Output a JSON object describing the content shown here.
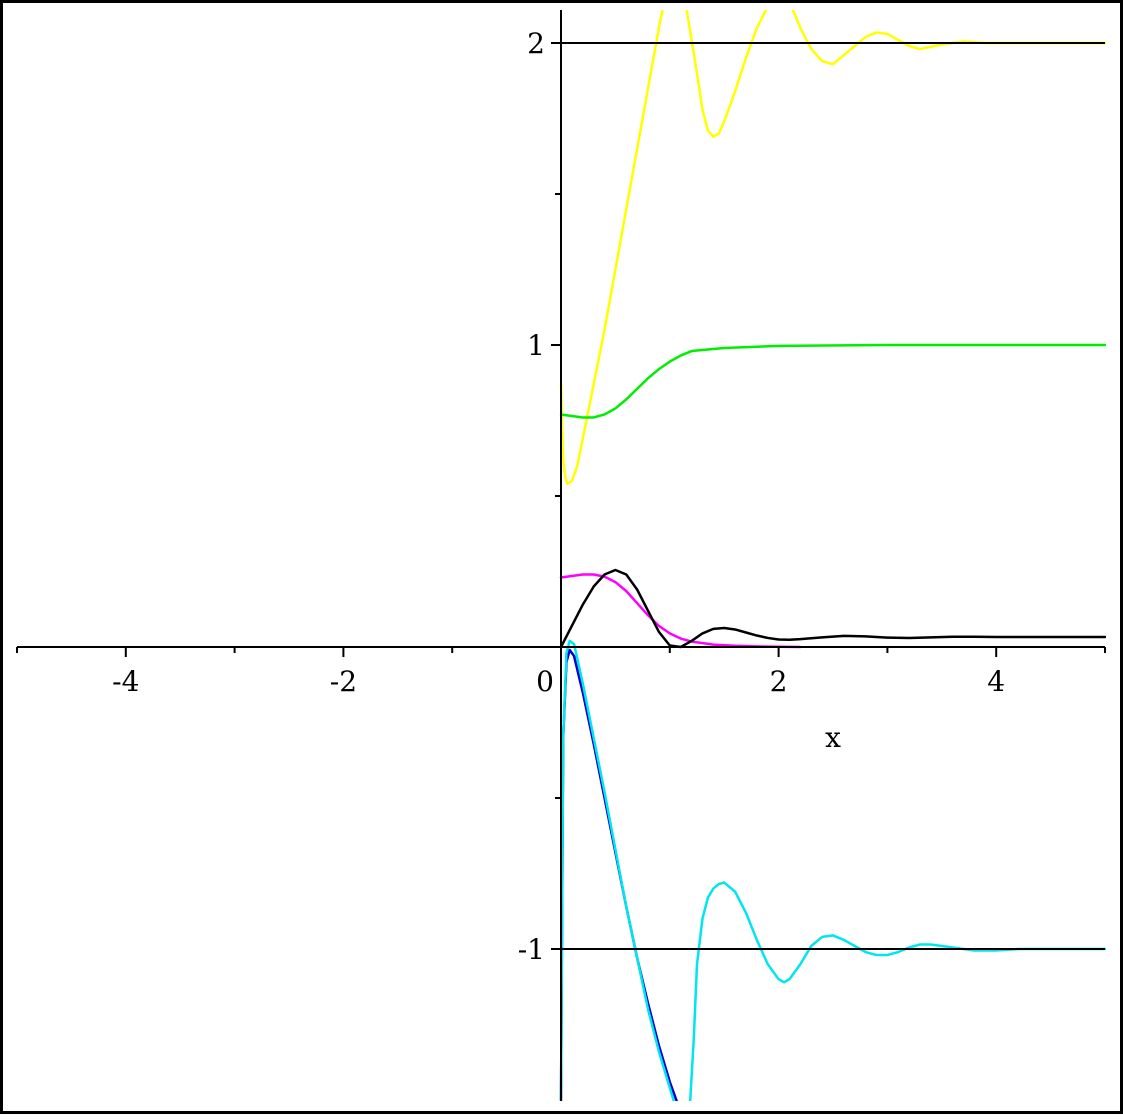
{
  "chart_data": {
    "type": "line",
    "title": "",
    "xlabel": "x",
    "ylabel": "",
    "xlim": [
      -5,
      5
    ],
    "ylim": [
      -1.5,
      2.1
    ],
    "grid": false,
    "legend": "none",
    "x_ticks": [
      {
        "value": -4,
        "label": "-4"
      },
      {
        "value": -2,
        "label": "-2"
      },
      {
        "value": 0,
        "label": "0"
      },
      {
        "value": 2,
        "label": "2"
      },
      {
        "value": 4,
        "label": "4"
      }
    ],
    "x_minor_ticks": [
      -5,
      -3,
      -1,
      1,
      3,
      5
    ],
    "y_ticks": [
      {
        "value": -1,
        "label": "-1"
      },
      {
        "value": 1,
        "label": "1"
      },
      {
        "value": 2,
        "label": "2"
      }
    ],
    "y_minor_ticks": [
      -0.5,
      0.5,
      1.5
    ],
    "reference_lines": [
      {
        "y": 2,
        "x_start": 0,
        "x_end": 5,
        "color": "#000000"
      },
      {
        "y": -1,
        "x_start": 0,
        "x_end": 5,
        "color": "#000000"
      }
    ],
    "series": [
      {
        "color": "#ffff00",
        "x": [
          0.0,
          0.02,
          0.04,
          0.06,
          0.1,
          0.15,
          0.25,
          0.4,
          0.55,
          0.7,
          0.85,
          0.91,
          0.94,
          1.15,
          1.25,
          1.3,
          1.35,
          1.4,
          1.45,
          1.5,
          1.6,
          1.7,
          1.8,
          1.9,
          1.97,
          2.12,
          2.2,
          2.3,
          2.4,
          2.5,
          2.6,
          2.7,
          2.8,
          2.9,
          3.0,
          3.1,
          3.2,
          3.3,
          3.5,
          3.7,
          3.9,
          4.2,
          4.5,
          5.0
        ],
        "y": [
          0.87,
          0.62,
          0.56,
          0.54,
          0.55,
          0.6,
          0.78,
          1.05,
          1.35,
          1.65,
          1.95,
          2.07,
          2.12,
          2.12,
          1.9,
          1.78,
          1.71,
          1.69,
          1.7,
          1.74,
          1.84,
          1.95,
          2.05,
          2.12,
          2.12,
          2.12,
          2.05,
          1.98,
          1.94,
          1.93,
          1.96,
          1.99,
          2.02,
          2.035,
          2.03,
          2.01,
          1.99,
          1.98,
          1.995,
          2.005,
          2.0,
          2.0,
          2.0,
          2.0
        ]
      },
      {
        "color": "#00ee00",
        "x": [
          0.0,
          0.1,
          0.2,
          0.3,
          0.4,
          0.5,
          0.6,
          0.7,
          0.8,
          0.9,
          1.0,
          1.1,
          1.2,
          1.5,
          2.0,
          3.0,
          4.0,
          5.0
        ],
        "y": [
          0.77,
          0.765,
          0.76,
          0.76,
          0.77,
          0.79,
          0.82,
          0.855,
          0.89,
          0.92,
          0.945,
          0.965,
          0.98,
          0.99,
          0.997,
          1.0,
          1.0,
          1.0
        ]
      },
      {
        "color": "#ff00ff",
        "x": [
          0.0,
          0.1,
          0.2,
          0.3,
          0.4,
          0.5,
          0.6,
          0.7,
          0.8,
          0.9,
          1.0,
          1.1,
          1.2,
          1.4,
          1.6,
          1.8,
          2.0,
          2.2
        ],
        "y": [
          0.23,
          0.235,
          0.24,
          0.24,
          0.233,
          0.215,
          0.185,
          0.145,
          0.105,
          0.07,
          0.045,
          0.028,
          0.018,
          0.008,
          0.004,
          0.002,
          0.001,
          0.0
        ]
      },
      {
        "color": "#000000",
        "x": [
          0.0,
          0.1,
          0.2,
          0.3,
          0.4,
          0.5,
          0.6,
          0.7,
          0.8,
          0.9,
          1.0,
          1.1,
          1.2,
          1.3,
          1.4,
          1.5,
          1.6,
          1.7,
          1.8,
          1.9,
          2.0,
          2.1,
          2.2,
          2.4,
          2.6,
          2.8,
          3.0,
          3.2,
          3.4,
          3.6,
          3.8,
          4.0,
          4.5,
          5.0
        ],
        "y": [
          0.0,
          0.07,
          0.14,
          0.2,
          0.24,
          0.255,
          0.24,
          0.19,
          0.12,
          0.05,
          0.005,
          0.0,
          0.02,
          0.045,
          0.06,
          0.063,
          0.058,
          0.048,
          0.038,
          0.03,
          0.025,
          0.024,
          0.026,
          0.032,
          0.037,
          0.035,
          0.031,
          0.03,
          0.032,
          0.034,
          0.034,
          0.033,
          0.033,
          0.033
        ]
      },
      {
        "color": "#0000cc",
        "x": [
          0.0,
          0.02,
          0.05,
          0.08,
          0.12,
          0.2,
          0.3,
          0.4,
          0.5,
          0.6,
          0.7,
          0.8,
          0.9,
          1.0,
          1.06,
          1.1
        ],
        "y": [
          -1.5,
          -0.3,
          -0.05,
          -0.01,
          -0.03,
          -0.15,
          -0.32,
          -0.5,
          -0.68,
          -0.86,
          -1.03,
          -1.18,
          -1.32,
          -1.44,
          -1.5,
          -1.55
        ]
      },
      {
        "color": "#00e5ee",
        "x": [
          0.0,
          0.02,
          0.05,
          0.08,
          0.12,
          0.2,
          0.3,
          0.4,
          0.5,
          0.6,
          0.7,
          0.8,
          0.9,
          1.0,
          1.06,
          1.1,
          1.18,
          1.22,
          1.25,
          1.3,
          1.35,
          1.4,
          1.45,
          1.5,
          1.6,
          1.7,
          1.8,
          1.9,
          2.0,
          2.05,
          2.1,
          2.2,
          2.3,
          2.4,
          2.5,
          2.6,
          2.7,
          2.8,
          2.9,
          3.0,
          3.1,
          3.2,
          3.3,
          3.4,
          3.5,
          3.6,
          3.7,
          3.8,
          4.0,
          4.2,
          4.5,
          5.0
        ],
        "y": [
          -1.5,
          -0.3,
          -0.02,
          0.02,
          0.01,
          -0.12,
          -0.3,
          -0.48,
          -0.67,
          -0.86,
          -1.03,
          -1.2,
          -1.34,
          -1.46,
          -1.53,
          -1.58,
          -1.55,
          -1.3,
          -1.05,
          -0.9,
          -0.83,
          -0.8,
          -0.785,
          -0.78,
          -0.81,
          -0.88,
          -0.97,
          -1.05,
          -1.1,
          -1.11,
          -1.1,
          -1.05,
          -0.99,
          -0.96,
          -0.955,
          -0.97,
          -0.99,
          -1.01,
          -1.02,
          -1.02,
          -1.01,
          -0.995,
          -0.985,
          -0.985,
          -0.99,
          -0.995,
          -1.0,
          -1.005,
          -1.005,
          -1.0,
          -1.0,
          -1.0
        ]
      }
    ]
  }
}
